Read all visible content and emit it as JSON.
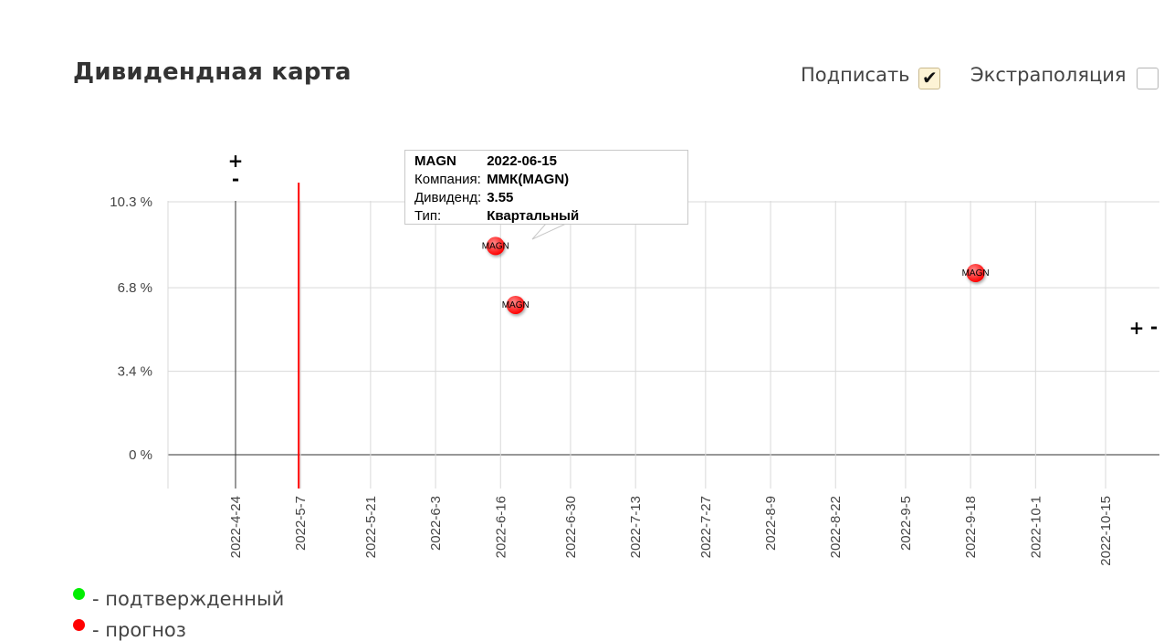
{
  "header": {
    "title": "Дивидендная карта",
    "sign_label": "Подписать",
    "sign_checked": true,
    "extrapolation_label": "Экстраполяция",
    "extrapolation_checked": false
  },
  "tooltip": {
    "ticker": "MAGN",
    "date": "2022-06-15",
    "company_label": "Компания:",
    "company_value": "ММК(MAGN)",
    "dividend_label": "Дивиденд:",
    "dividend_value": "3.55",
    "type_label": "Тип:",
    "type_value": "Квартальный"
  },
  "zoom": {
    "plus": "+",
    "minus": "-"
  },
  "legend": [
    {
      "label": "- подтвержденный",
      "color": "#00ee00"
    },
    {
      "label": "- прогноз",
      "color": "#ff0000"
    }
  ],
  "chart_data": {
    "type": "scatter",
    "title": "Дивидендная карта",
    "xlabel": "",
    "ylabel": "",
    "x_ticks": [
      "2022-4-24",
      "2022-5-7",
      "2022-5-21",
      "2022-6-3",
      "2022-6-16",
      "2022-6-30",
      "2022-7-13",
      "2022-7-27",
      "2022-8-9",
      "2022-8-22",
      "2022-9-5",
      "2022-9-18",
      "2022-10-1",
      "2022-10-15"
    ],
    "y_ticks": [
      "0 %",
      "3.4 %",
      "6.8 %",
      "10.3 %"
    ],
    "ylim": [
      0,
      10.3
    ],
    "today_marker": "2022-5-7",
    "grid": true,
    "series": [
      {
        "color": "#ff0000",
        "points": [
          {
            "x": "2022-06-15",
            "y": 8.5,
            "label": "MAGN"
          },
          {
            "x": "2022-06-19",
            "y": 6.1,
            "label": "MAGN"
          },
          {
            "x": "2022-09-19",
            "y": 7.4,
            "label": "MAGN"
          }
        ]
      }
    ]
  }
}
